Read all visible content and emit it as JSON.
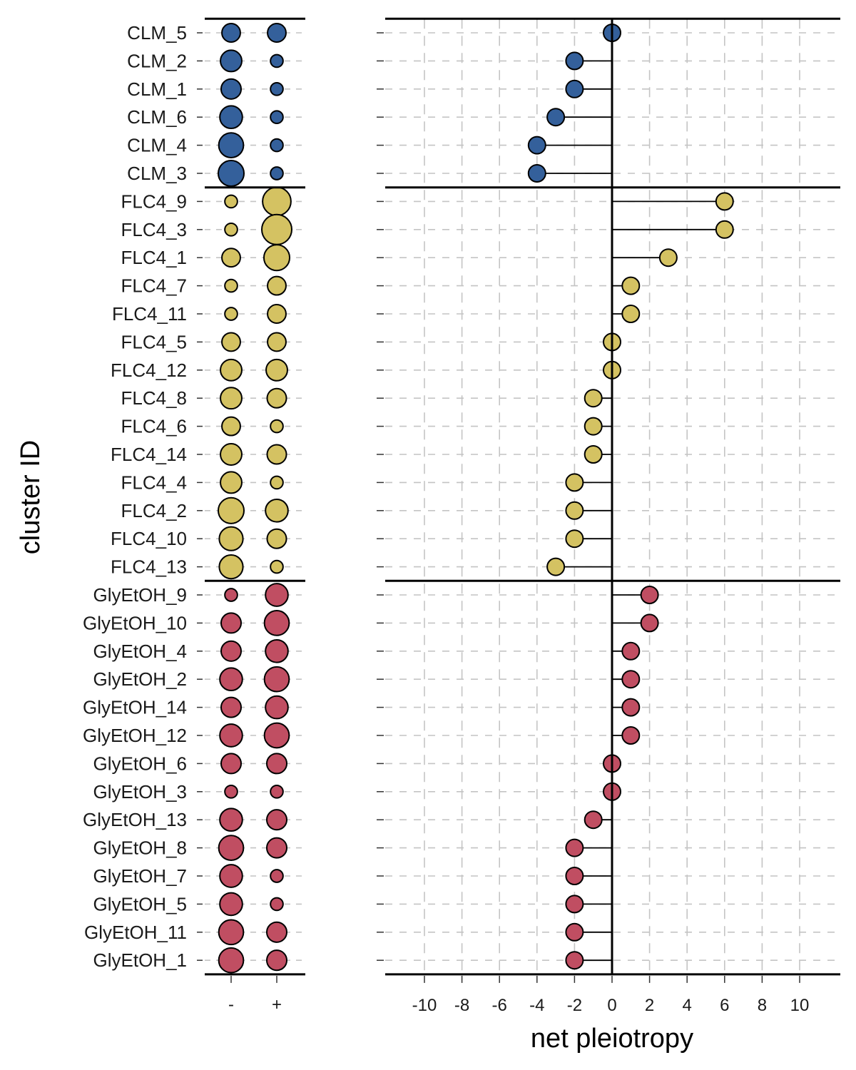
{
  "y_axis_title": "cluster ID",
  "x_axis_title": "net pleiotropy",
  "sign_labels": [
    "-",
    "+"
  ],
  "colors": {
    "CLM": "#34609b",
    "FLC4": "#d4c262",
    "GlyEtOH": "#c04e62",
    "grid": "#c4c4c4",
    "axis": "#000000"
  },
  "chart_data": [
    {
      "type": "scatter",
      "description_label": "counts of negative (-) and positive (+) effects per cluster, shown as circle size",
      "categories": [
        "-",
        "+"
      ],
      "groups": [
        {
          "name": "CLM",
          "rows": [
            {
              "cluster": "CLM_5",
              "neg": 3,
              "pos": 3
            },
            {
              "cluster": "CLM_2",
              "neg": 5,
              "pos": 0.5
            },
            {
              "cluster": "CLM_1",
              "neg": 4,
              "pos": 0.5
            },
            {
              "cluster": "CLM_6",
              "neg": 6,
              "pos": 0.5
            },
            {
              "cluster": "CLM_4",
              "neg": 8,
              "pos": 0.5
            },
            {
              "cluster": "CLM_3",
              "neg": 9,
              "pos": 0.5
            }
          ]
        },
        {
          "name": "FLC4",
          "rows": [
            {
              "cluster": "FLC4_9",
              "neg": 0.5,
              "pos": 12
            },
            {
              "cluster": "FLC4_3",
              "neg": 0.5,
              "pos": 14
            },
            {
              "cluster": "FLC4_1",
              "neg": 3,
              "pos": 9
            },
            {
              "cluster": "FLC4_7",
              "neg": 0.5,
              "pos": 3
            },
            {
              "cluster": "FLC4_11",
              "neg": 0.5,
              "pos": 3
            },
            {
              "cluster": "FLC4_5",
              "neg": 3,
              "pos": 3
            },
            {
              "cluster": "FLC4_12",
              "neg": 5,
              "pos": 5
            },
            {
              "cluster": "FLC4_8",
              "neg": 5,
              "pos": 3.5
            },
            {
              "cluster": "FLC4_6",
              "neg": 3,
              "pos": 0.5
            },
            {
              "cluster": "FLC4_14",
              "neg": 5,
              "pos": 3.5
            },
            {
              "cluster": "FLC4_4",
              "neg": 5,
              "pos": 0.5
            },
            {
              "cluster": "FLC4_2",
              "neg": 9,
              "pos": 6
            },
            {
              "cluster": "FLC4_10",
              "neg": 7,
              "pos": 3.5
            },
            {
              "cluster": "FLC4_13",
              "neg": 7,
              "pos": 0.5
            }
          ]
        },
        {
          "name": "GlyEtOH",
          "rows": [
            {
              "cluster": "GlyEtOH_9",
              "neg": 0.5,
              "pos": 6
            },
            {
              "cluster": "GlyEtOH_10",
              "neg": 4,
              "pos": 8
            },
            {
              "cluster": "GlyEtOH_4",
              "neg": 4,
              "pos": 6
            },
            {
              "cluster": "GlyEtOH_2",
              "neg": 6,
              "pos": 8
            },
            {
              "cluster": "GlyEtOH_14",
              "neg": 4,
              "pos": 6
            },
            {
              "cluster": "GlyEtOH_12",
              "neg": 6,
              "pos": 8
            },
            {
              "cluster": "GlyEtOH_6",
              "neg": 4,
              "pos": 4
            },
            {
              "cluster": "GlyEtOH_3",
              "neg": 0.5,
              "pos": 0.5
            },
            {
              "cluster": "GlyEtOH_13",
              "neg": 6,
              "pos": 4
            },
            {
              "cluster": "GlyEtOH_8",
              "neg": 8,
              "pos": 4
            },
            {
              "cluster": "GlyEtOH_7",
              "neg": 6,
              "pos": 0.5
            },
            {
              "cluster": "GlyEtOH_5",
              "neg": 6,
              "pos": 0.5
            },
            {
              "cluster": "GlyEtOH_11",
              "neg": 8,
              "pos": 4
            },
            {
              "cluster": "GlyEtOH_1",
              "neg": 8,
              "pos": 4
            }
          ]
        }
      ]
    },
    {
      "type": "lollipop",
      "xlabel": "net pleiotropy",
      "ylabel": "cluster ID",
      "xlim": [
        -11.2,
        12
      ],
      "xticks": [
        -10,
        -8,
        -6,
        -4,
        -2,
        0,
        2,
        4,
        6,
        8,
        10
      ],
      "grid": "dashed",
      "values": {
        "CLM_5": 0,
        "CLM_2": -2,
        "CLM_1": -2,
        "CLM_6": -3,
        "CLM_4": -4,
        "CLM_3": -4,
        "FLC4_9": 6,
        "FLC4_3": 6,
        "FLC4_1": 3,
        "FLC4_7": 1,
        "FLC4_11": 1,
        "FLC4_5": 0,
        "FLC4_12": 0,
        "FLC4_8": -1,
        "FLC4_6": -1,
        "FLC4_14": -1,
        "FLC4_4": -2,
        "FLC4_2": -2,
        "FLC4_10": -2,
        "FLC4_13": -3,
        "GlyEtOH_9": 2,
        "GlyEtOH_10": 2,
        "GlyEtOH_4": 1,
        "GlyEtOH_2": 1,
        "GlyEtOH_14": 1,
        "GlyEtOH_12": 1,
        "GlyEtOH_6": 0,
        "GlyEtOH_3": 0,
        "GlyEtOH_13": -1,
        "GlyEtOH_8": -2,
        "GlyEtOH_7": -2,
        "GlyEtOH_5": -2,
        "GlyEtOH_11": -2,
        "GlyEtOH_1": -2
      }
    }
  ]
}
